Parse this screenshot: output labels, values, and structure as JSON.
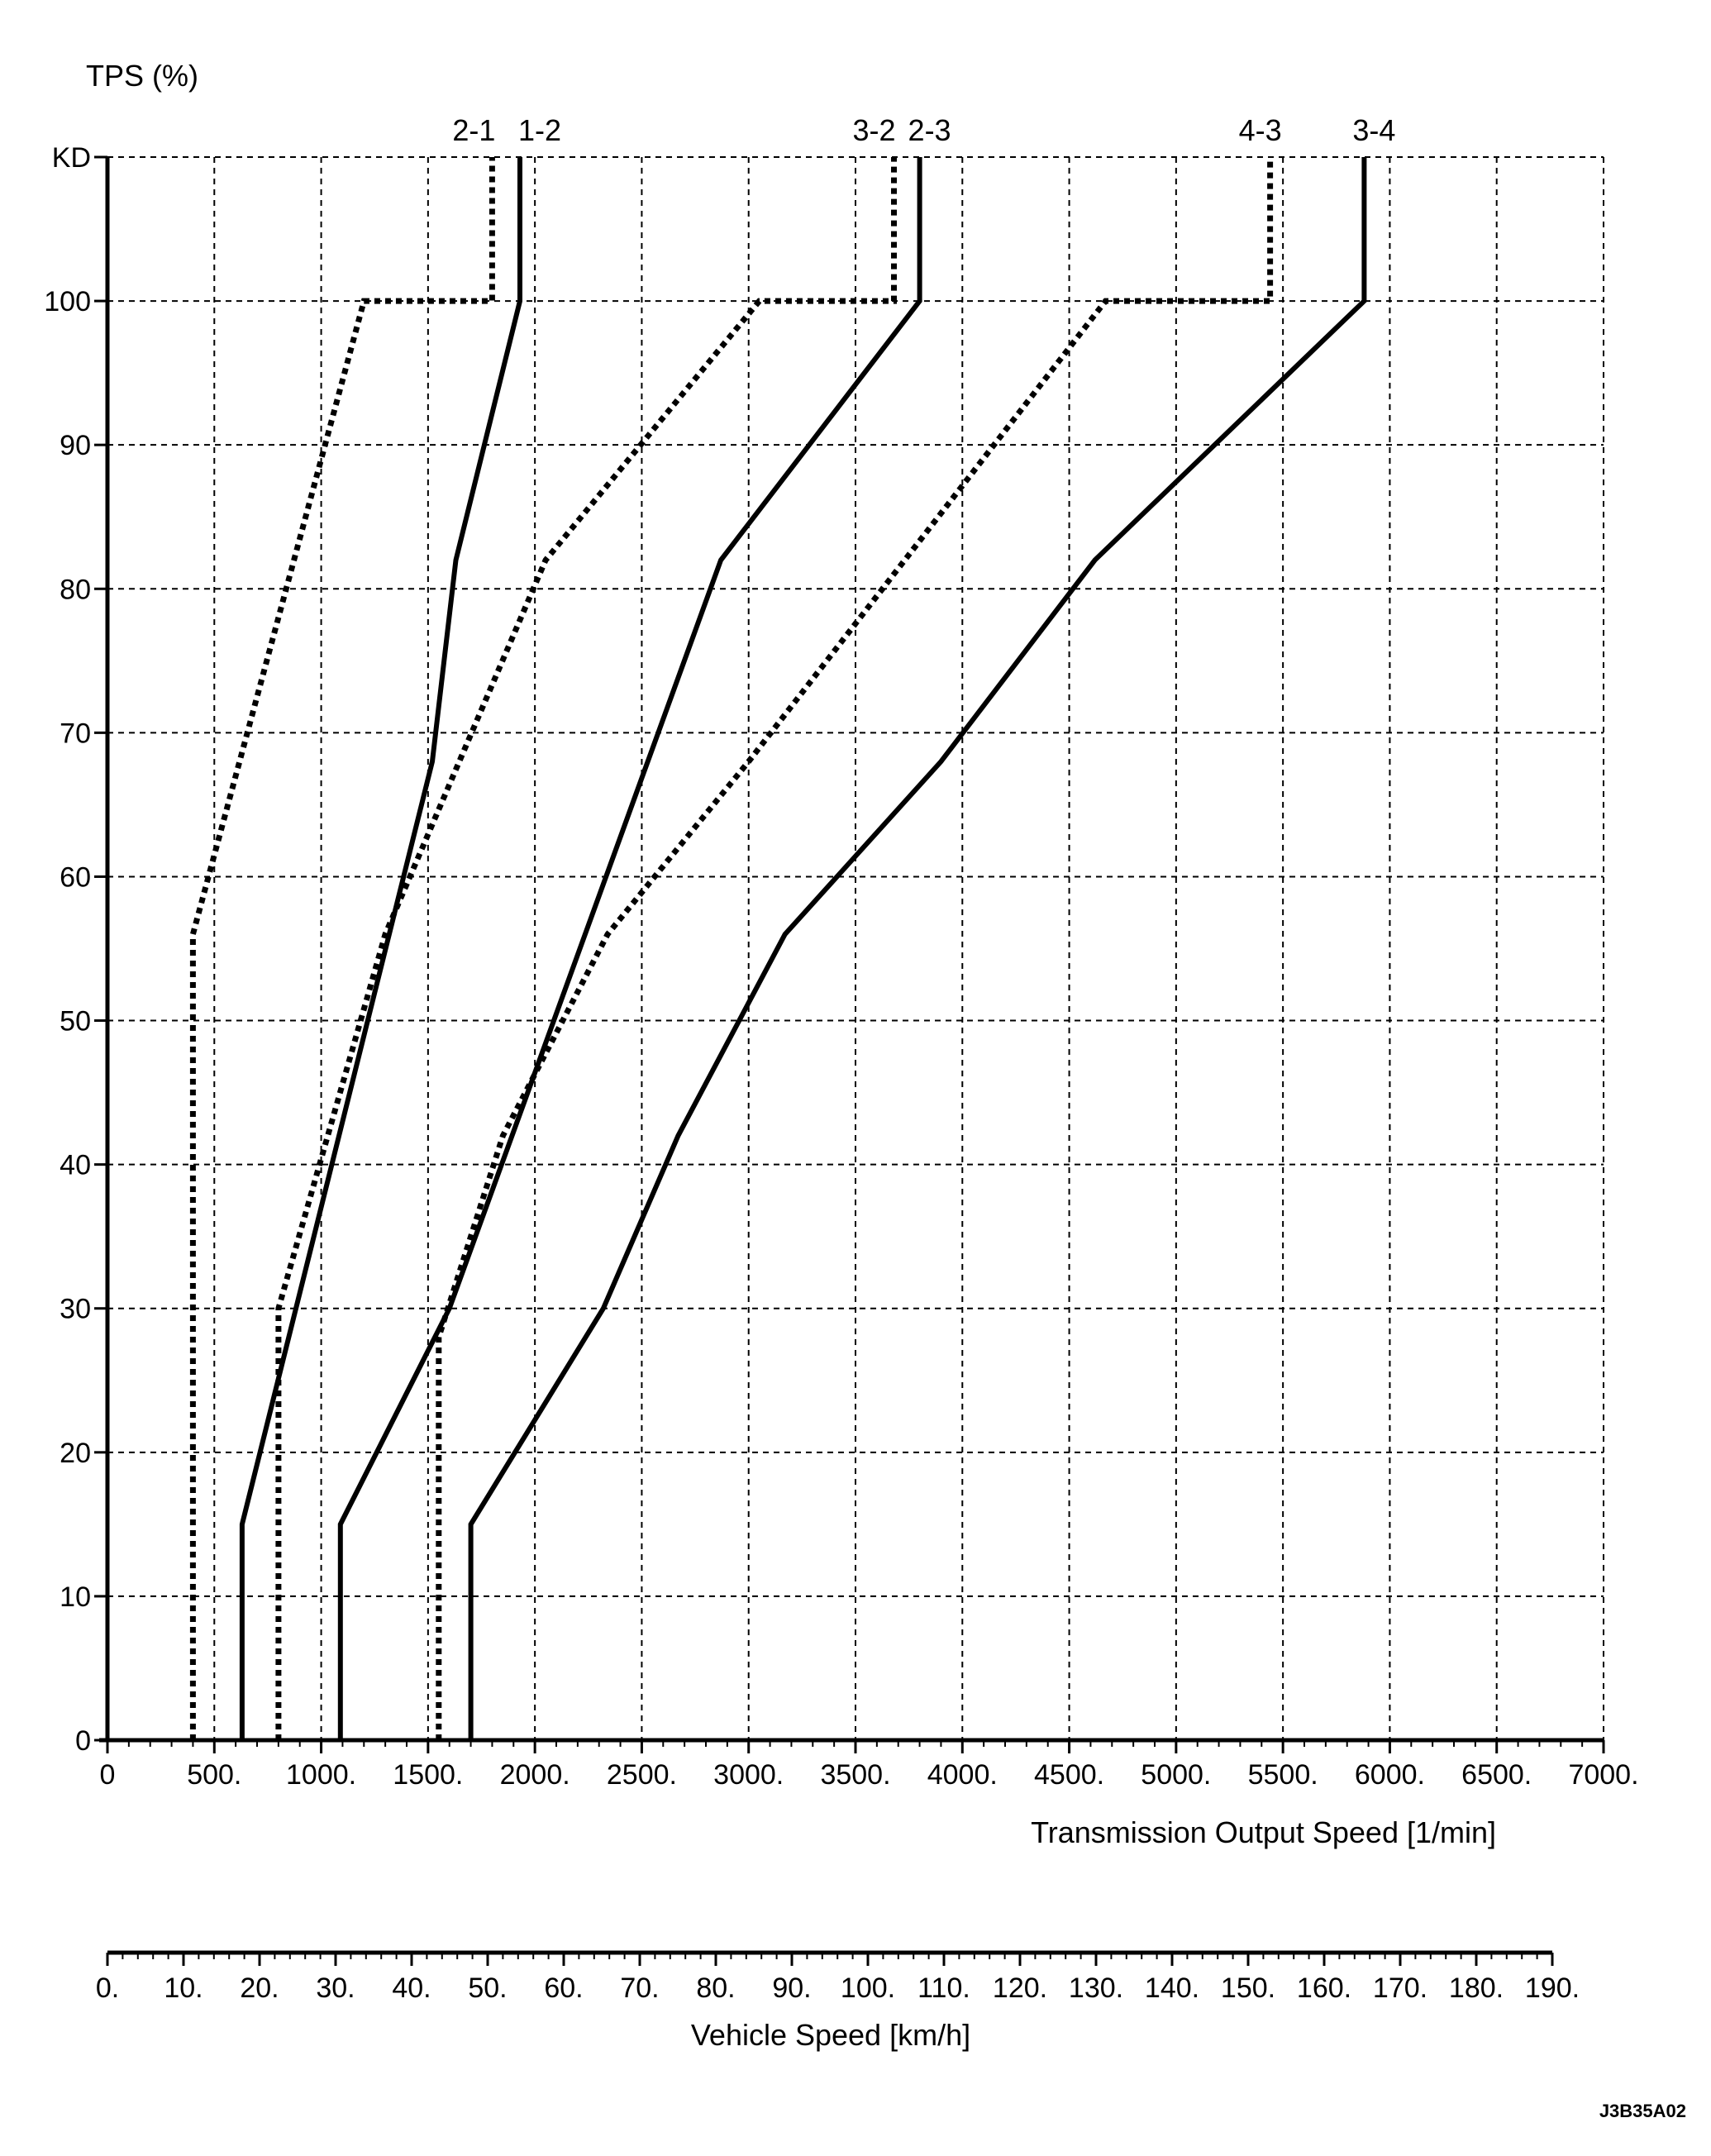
{
  "chart_data": {
    "type": "line",
    "title": "",
    "ylabel": "TPS (%)",
    "xlabel": "Transmission Output Speed [1/min]",
    "x2label": "Vehicle Speed [km/h]",
    "figure_code": "J3B35A02",
    "grid": true,
    "xlim": [
      0,
      7000
    ],
    "ylim": [
      0,
      110
    ],
    "x2lim": [
      0,
      190
    ],
    "y_tick_labels": [
      {
        "value": 0,
        "label": "0"
      },
      {
        "value": 10,
        "label": "10"
      },
      {
        "value": 20,
        "label": "20"
      },
      {
        "value": 30,
        "label": "30"
      },
      {
        "value": 40,
        "label": "40"
      },
      {
        "value": 50,
        "label": "50"
      },
      {
        "value": 60,
        "label": "60"
      },
      {
        "value": 70,
        "label": "70"
      },
      {
        "value": 80,
        "label": "80"
      },
      {
        "value": 90,
        "label": "90"
      },
      {
        "value": 100,
        "label": "100"
      },
      {
        "value": 110,
        "label": "KD"
      }
    ],
    "x_tick_labels": [
      {
        "value": 0,
        "label": "0"
      },
      {
        "value": 500,
        "label": "500."
      },
      {
        "value": 1000,
        "label": "1000."
      },
      {
        "value": 1500,
        "label": "1500."
      },
      {
        "value": 2000,
        "label": "2000."
      },
      {
        "value": 2500,
        "label": "2500."
      },
      {
        "value": 3000,
        "label": "3000."
      },
      {
        "value": 3500,
        "label": "3500."
      },
      {
        "value": 4000,
        "label": "4000."
      },
      {
        "value": 4500,
        "label": "4500."
      },
      {
        "value": 5000,
        "label": "5000."
      },
      {
        "value": 5500,
        "label": "5500."
      },
      {
        "value": 6000,
        "label": "6000."
      },
      {
        "value": 6500,
        "label": "6500."
      },
      {
        "value": 7000,
        "label": "7000."
      }
    ],
    "x2_tick_labels": [
      {
        "value": 0,
        "label": "0."
      },
      {
        "value": 10,
        "label": "10."
      },
      {
        "value": 20,
        "label": "20."
      },
      {
        "value": 30,
        "label": "30."
      },
      {
        "value": 40,
        "label": "40."
      },
      {
        "value": 50,
        "label": "50."
      },
      {
        "value": 60,
        "label": "60."
      },
      {
        "value": 70,
        "label": "70."
      },
      {
        "value": 80,
        "label": "80."
      },
      {
        "value": 90,
        "label": "90."
      },
      {
        "value": 100,
        "label": "100."
      },
      {
        "value": 110,
        "label": "110."
      },
      {
        "value": 120,
        "label": "120."
      },
      {
        "value": 130,
        "label": "130."
      },
      {
        "value": 140,
        "label": "140."
      },
      {
        "value": 150,
        "label": "150."
      },
      {
        "value": 160,
        "label": "160."
      },
      {
        "value": 170,
        "label": "170."
      },
      {
        "value": 180,
        "label": "180."
      },
      {
        "value": 190,
        "label": "190."
      }
    ],
    "series": [
      {
        "name": "2-1",
        "style": "dotted",
        "points": [
          [
            400,
            0
          ],
          [
            400,
            56
          ],
          [
            1200,
            100
          ],
          [
            1800,
            100
          ],
          [
            1800,
            110
          ]
        ]
      },
      {
        "name": "1-2",
        "style": "solid",
        "points": [
          [
            630,
            0
          ],
          [
            630,
            15
          ],
          [
            1520,
            68
          ],
          [
            1630,
            82
          ],
          [
            1930,
            100
          ],
          [
            1930,
            110
          ]
        ]
      },
      {
        "name": "3-2",
        "style": "dotted",
        "points": [
          [
            800,
            0
          ],
          [
            800,
            30
          ],
          [
            1300,
            56
          ],
          [
            2050,
            82
          ],
          [
            3050,
            100
          ],
          [
            3680,
            100
          ],
          [
            3680,
            110
          ]
        ]
      },
      {
        "name": "2-3",
        "style": "solid",
        "points": [
          [
            1090,
            0
          ],
          [
            1090,
            15
          ],
          [
            1600,
            30
          ],
          [
            2870,
            82
          ],
          [
            3800,
            100
          ],
          [
            3800,
            110
          ]
        ]
      },
      {
        "name": "4-3",
        "style": "dotted",
        "points": [
          [
            1550,
            0
          ],
          [
            1550,
            28
          ],
          [
            1850,
            42
          ],
          [
            2340,
            56
          ],
          [
            3000,
            68
          ],
          [
            4670,
            100
          ],
          [
            5440,
            100
          ],
          [
            5440,
            110
          ]
        ]
      },
      {
        "name": "3-4",
        "style": "solid",
        "points": [
          [
            1700,
            0
          ],
          [
            1700,
            15
          ],
          [
            2320,
            30
          ],
          [
            2670,
            42
          ],
          [
            3170,
            56
          ],
          [
            3900,
            68
          ],
          [
            4620,
            82
          ],
          [
            5880,
            100
          ],
          [
            5880,
            110
          ]
        ]
      }
    ]
  }
}
